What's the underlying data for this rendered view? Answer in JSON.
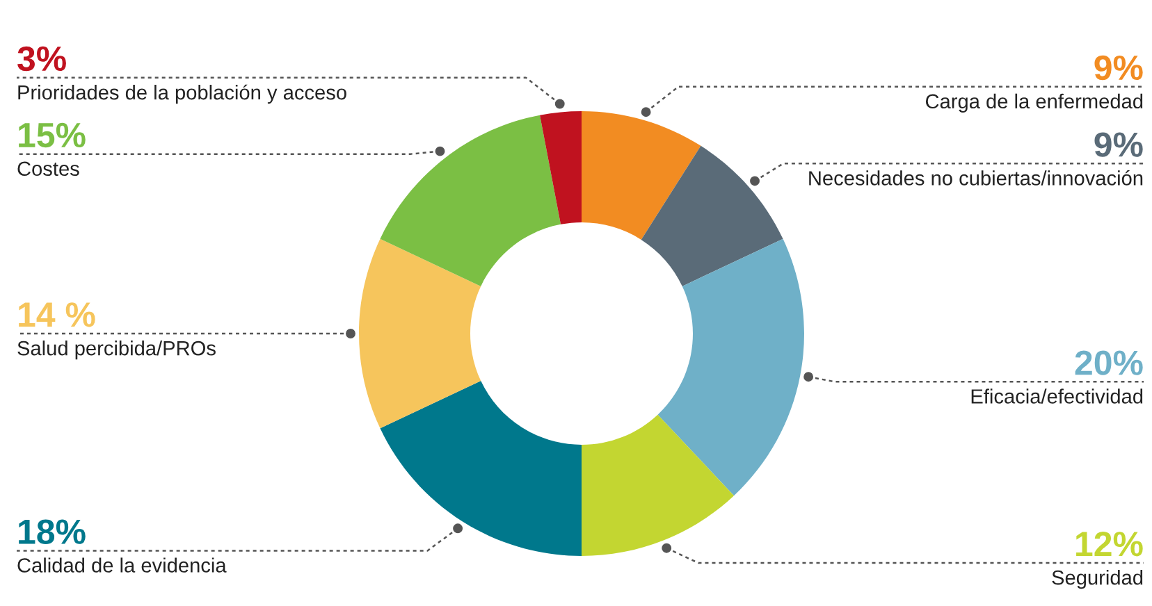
{
  "chart_data": {
    "type": "donut",
    "categories": [
      "Carga de la enfermedad",
      "Necesidades no cubiertas/innovación",
      "Eficacia/efectividad",
      "Seguridad",
      "Calidad de la evidencia",
      "Salud percibida/PROs",
      "Costes",
      "Prioridades de la población y acceso"
    ],
    "values": [
      9,
      9,
      20,
      12,
      18,
      14,
      15,
      3
    ],
    "value_labels": [
      "9%",
      "9%",
      "20%",
      "12%",
      "18%",
      "14 %",
      "15%",
      "3%"
    ],
    "colors": [
      "#f28c22",
      "#5a6b78",
      "#6fb0c8",
      "#c3d631",
      "#00788c",
      "#f6c55c",
      "#7bbf44",
      "#c0121f"
    ],
    "legend": false
  }
}
